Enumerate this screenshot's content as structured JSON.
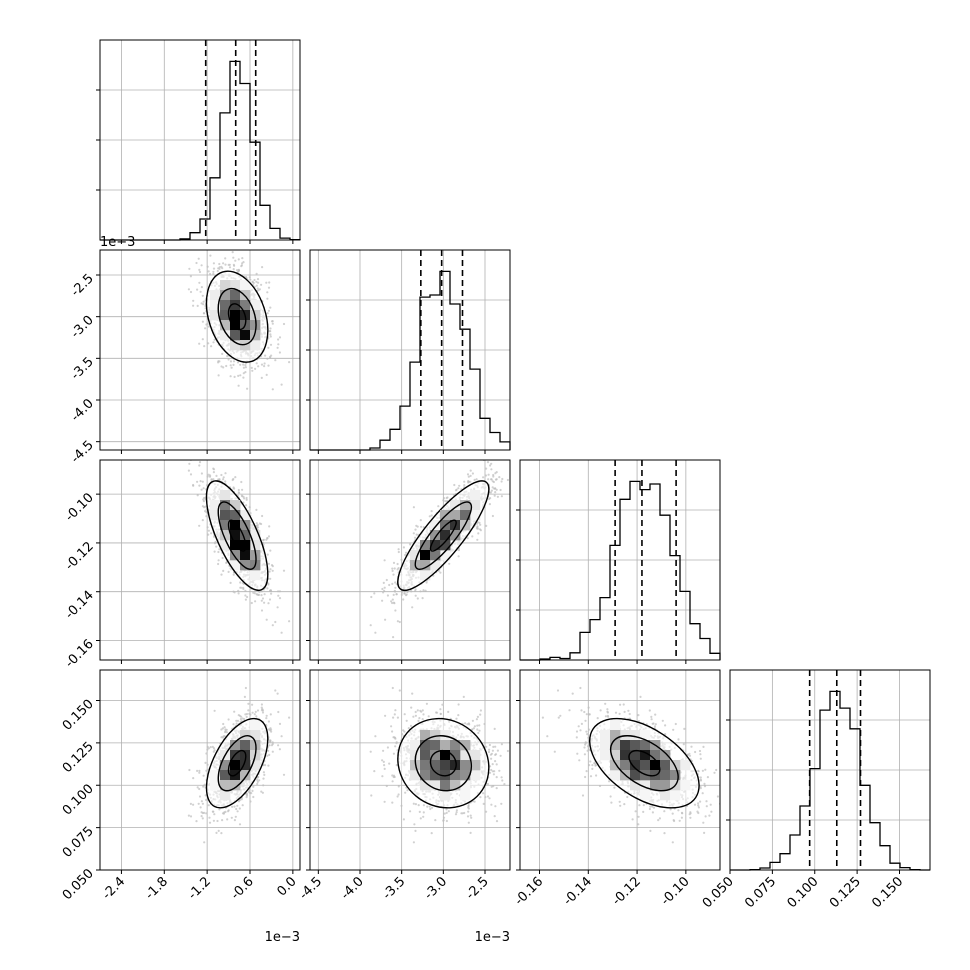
{
  "chart_data": {
    "type": "corner",
    "parameters": [
      {
        "index": 0,
        "range": [
          -0.0027,
          0.0001
        ],
        "ticks": [
          -0.0024,
          -0.0018,
          -0.0012,
          -0.0006,
          0.0
        ],
        "tick_labels": [
          "-2.4",
          "-1.8",
          "-1.2",
          "-0.6",
          "0.0"
        ],
        "offset": "1e−3",
        "mean": -0.00078,
        "sd": 0.00022,
        "rho": [
          1,
          -0.3,
          -0.7,
          0.55
        ],
        "quantiles": [
          -0.00122,
          -0.0008,
          -0.00052
        ]
      },
      {
        "index": 1,
        "range": [
          -0.0046,
          -0.0022
        ],
        "ticks": [
          -0.0045,
          -0.004,
          -0.0035,
          -0.003,
          -0.0025
        ],
        "tick_labels": [
          "-4.5",
          "-4.0",
          "-3.5",
          "-3.0",
          "-2.5"
        ],
        "offset": "1e−3",
        "mean": -0.003,
        "sd": 0.00028,
        "quantiles": [
          -0.00327,
          -0.00302,
          -0.00277
        ]
      },
      {
        "index": 2,
        "range": [
          -0.168,
          -0.086
        ],
        "ticks": [
          -0.16,
          -0.14,
          -0.12,
          -0.1
        ],
        "tick_labels": [
          "-0.16",
          "-0.14",
          "-0.12",
          "-0.10"
        ],
        "offset": "",
        "mean": -0.117,
        "sd": 0.0115,
        "quantiles": [
          -0.129,
          -0.118,
          -0.104
        ]
      },
      {
        "index": 3,
        "range": [
          0.05,
          0.168
        ],
        "ticks": [
          0.05,
          0.075,
          0.1,
          0.125,
          0.15
        ],
        "tick_labels": [
          "0.050",
          "0.075",
          "0.100",
          "0.125",
          "0.150"
        ],
        "offset": "",
        "mean": 0.113,
        "sd": 0.0135,
        "quantiles": [
          0.097,
          0.113,
          0.127
        ]
      }
    ],
    "correlations": {
      "0-1": -0.3,
      "0-2": -0.7,
      "0-3": 0.55,
      "1-2": 0.85,
      "1-3": -0.1,
      "2-3": -0.5
    },
    "histogram_bins": 20,
    "grid": true
  }
}
